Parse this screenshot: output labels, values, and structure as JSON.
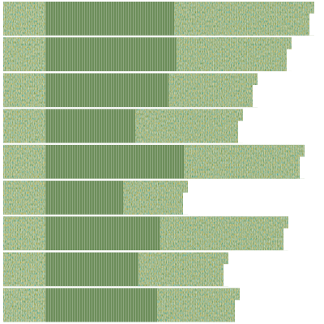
{
  "chart_data": {
    "type": "alignment",
    "values": [
      388,
      360,
      318,
      300,
      376,
      232,
      356,
      282,
      296
    ],
    "color": "#6d8e5b"
  }
}
